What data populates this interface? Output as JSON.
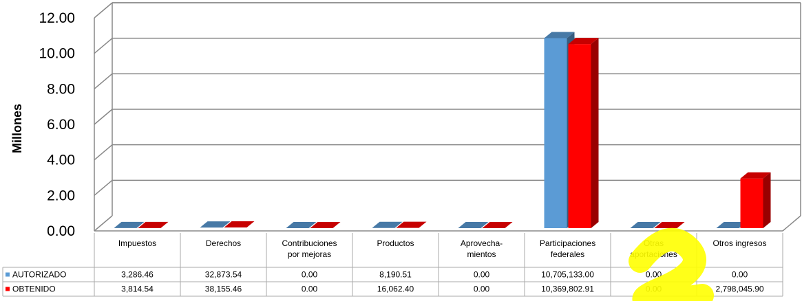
{
  "chart_data": {
    "type": "bar",
    "ylabel": "Millones",
    "ylim": [
      0,
      12
    ],
    "yticks": [
      "0.00",
      "2.00",
      "4.00",
      "6.00",
      "8.00",
      "10.00",
      "12.00"
    ],
    "categories": [
      [
        "Impuestos"
      ],
      [
        "Derechos"
      ],
      [
        "Contribuciones",
        "por mejoras"
      ],
      [
        "Productos"
      ],
      [
        "Aprovecha-",
        "mientos"
      ],
      [
        "Participaciones",
        "federales"
      ],
      [
        "Otras",
        "aportaciones"
      ],
      [
        "Otros ingresos"
      ]
    ],
    "series": [
      {
        "name": "AUTORIZADO",
        "color": "#5b9bd5",
        "values": [
          0.00328646,
          0.03287354,
          0,
          0.00819051,
          0,
          10.705133,
          0,
          0
        ],
        "labels": [
          "3,286.46",
          "32,873.54",
          "0.00",
          "8,190.51",
          "0.00",
          "10,705,133.00",
          "0.00",
          "0.00"
        ]
      },
      {
        "name": "OBTENIDO",
        "color": "#ff0000",
        "values": [
          0.00381454,
          0.03815546,
          0,
          0.0160624,
          0,
          10.36980291,
          0,
          2.7980459
        ],
        "labels": [
          "3,814.54",
          "38,155.46",
          "0.00",
          "16,062.40",
          "0.00",
          "10,369,802.91",
          "0.00",
          "2,798,045.90"
        ]
      }
    ],
    "grid": true,
    "legend": "data-table"
  },
  "watermark_text": "S"
}
